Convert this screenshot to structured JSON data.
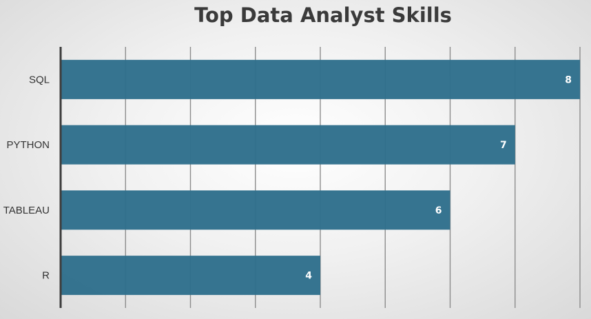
{
  "chart_data": {
    "type": "bar",
    "orientation": "horizontal",
    "title": "Top Data Analyst Skills",
    "categories": [
      "SQL",
      "PYTHON",
      "TABLEAU",
      "R"
    ],
    "values": [
      8,
      7,
      6,
      4
    ],
    "xlim": [
      0,
      8
    ],
    "grid": true,
    "bar_color": "#2f6f8c",
    "label_color": "#ffffff"
  }
}
